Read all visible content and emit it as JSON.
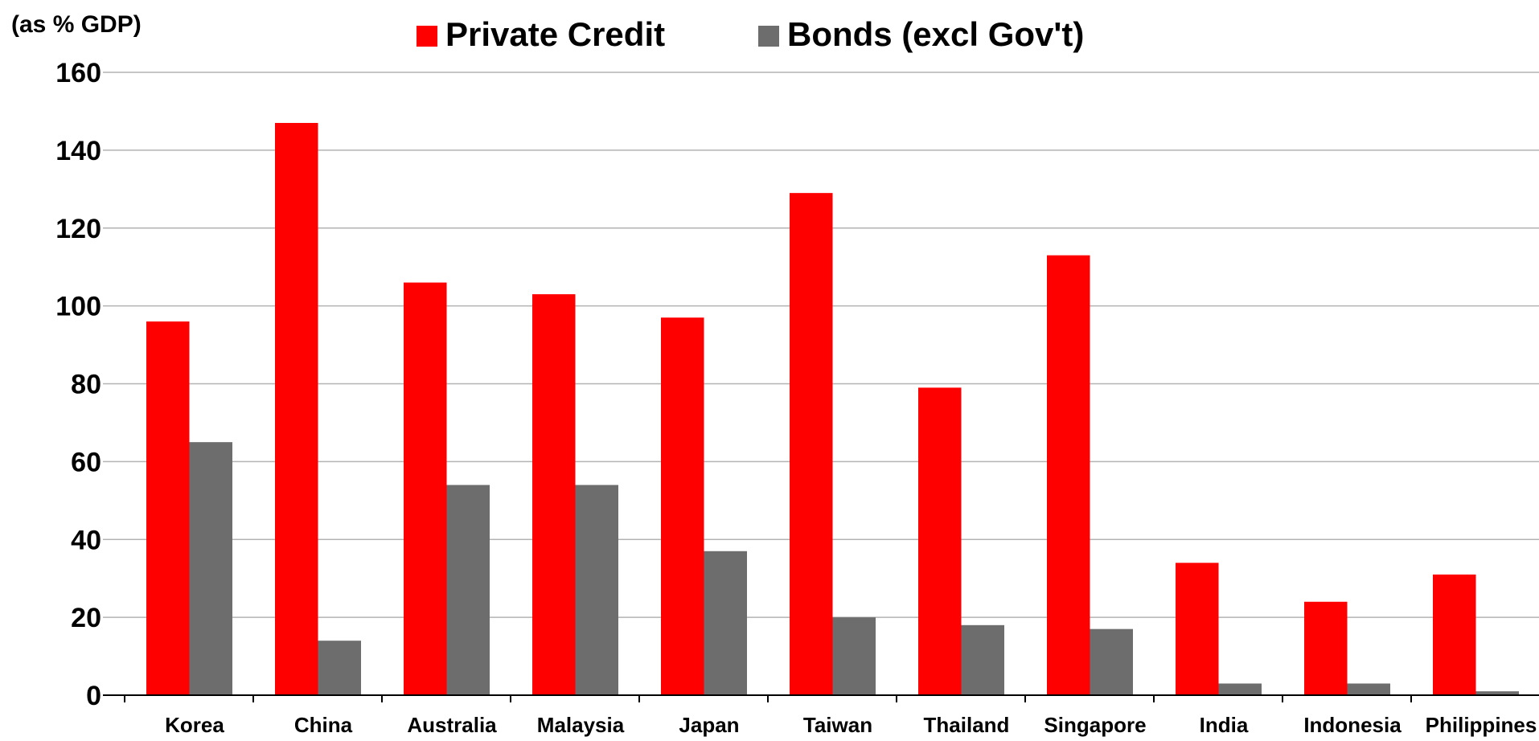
{
  "chart_data": {
    "type": "bar",
    "unit_label": "(as % GDP)",
    "categories": [
      "Korea",
      "China",
      "Australia",
      "Malaysia",
      "Japan",
      "Taiwan",
      "Thailand",
      "Singapore",
      "India",
      "Indonesia",
      "Philippines"
    ],
    "series": [
      {
        "name": "Private Credit",
        "color": "#ff0000",
        "values": [
          96,
          147,
          106,
          103,
          97,
          129,
          79,
          113,
          34,
          24,
          31
        ]
      },
      {
        "name": "Bonds (excl Gov't)",
        "color": "#6d6d6d",
        "values": [
          65,
          14,
          54,
          54,
          37,
          20,
          18,
          17,
          3,
          3,
          1
        ]
      }
    ],
    "ylim": [
      0,
      160
    ],
    "yticks": [
      0,
      20,
      40,
      60,
      80,
      100,
      120,
      140,
      160
    ],
    "grid": true,
    "legend_position": "top-center"
  }
}
